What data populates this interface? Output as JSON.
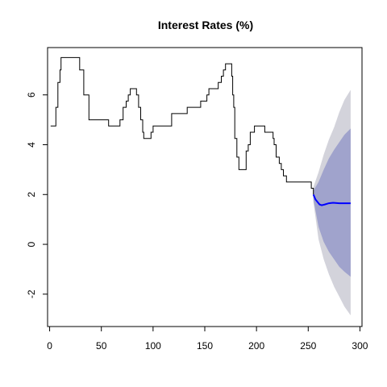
{
  "chart_data": {
    "type": "line",
    "title": "Interest Rates (%)",
    "xlabel": "",
    "ylabel": "",
    "xlim": [
      -2,
      302
    ],
    "ylim": [
      -3.3,
      7.9
    ],
    "x_ticks": [
      0,
      50,
      100,
      150,
      200,
      250,
      300
    ],
    "y_ticks": [
      -2,
      0,
      2,
      4,
      6
    ],
    "grid": false,
    "colors": {
      "history": "#000000",
      "forecast": "#0000ff",
      "band_80": "#a0a3cc",
      "band_95": "#d3d3db"
    },
    "history": {
      "name": "",
      "points": [
        [
          1,
          4.75
        ],
        [
          6,
          4.75
        ],
        [
          6,
          5.5
        ],
        [
          8,
          5.5
        ],
        [
          8,
          6.5
        ],
        [
          10,
          6.5
        ],
        [
          10,
          7.0
        ],
        [
          11,
          7.0
        ],
        [
          11,
          7.5
        ],
        [
          29,
          7.5
        ],
        [
          29,
          7.0
        ],
        [
          33,
          7.0
        ],
        [
          33,
          6.0
        ],
        [
          38,
          6.0
        ],
        [
          38,
          5.0
        ],
        [
          57,
          5.0
        ],
        [
          57,
          4.75
        ],
        [
          68,
          4.75
        ],
        [
          68,
          5.0
        ],
        [
          71,
          5.0
        ],
        [
          71,
          5.5
        ],
        [
          74,
          5.5
        ],
        [
          74,
          5.75
        ],
        [
          76,
          5.75
        ],
        [
          76,
          6.0
        ],
        [
          78,
          6.0
        ],
        [
          78,
          6.25
        ],
        [
          84,
          6.25
        ],
        [
          84,
          6.0
        ],
        [
          86,
          6.0
        ],
        [
          86,
          5.5
        ],
        [
          88,
          5.5
        ],
        [
          88,
          5.0
        ],
        [
          90,
          5.0
        ],
        [
          90,
          4.5
        ],
        [
          91,
          4.5
        ],
        [
          91,
          4.25
        ],
        [
          98,
          4.25
        ],
        [
          98,
          4.5
        ],
        [
          100,
          4.5
        ],
        [
          100,
          4.75
        ],
        [
          118,
          4.75
        ],
        [
          118,
          5.25
        ],
        [
          133,
          5.25
        ],
        [
          133,
          5.5
        ],
        [
          146,
          5.5
        ],
        [
          146,
          5.75
        ],
        [
          152,
          5.75
        ],
        [
          152,
          6.0
        ],
        [
          154,
          6.0
        ],
        [
          154,
          6.25
        ],
        [
          163,
          6.25
        ],
        [
          163,
          6.5
        ],
        [
          166,
          6.5
        ],
        [
          166,
          6.75
        ],
        [
          168,
          6.75
        ],
        [
          168,
          7.0
        ],
        [
          170,
          7.0
        ],
        [
          170,
          7.25
        ],
        [
          176,
          7.25
        ],
        [
          176,
          6.75
        ],
        [
          177,
          6.75
        ],
        [
          177,
          6.0
        ],
        [
          178,
          6.0
        ],
        [
          178,
          5.5
        ],
        [
          179,
          5.5
        ],
        [
          179,
          4.25
        ],
        [
          181,
          4.25
        ],
        [
          181,
          3.5
        ],
        [
          183,
          3.5
        ],
        [
          183,
          3.0
        ],
        [
          190,
          3.0
        ],
        [
          190,
          3.75
        ],
        [
          192,
          3.75
        ],
        [
          192,
          4.0
        ],
        [
          194,
          4.0
        ],
        [
          194,
          4.5
        ],
        [
          196,
          4.5
        ],
        [
          196,
          4.5
        ],
        [
          198,
          4.5
        ],
        [
          198,
          4.75
        ],
        [
          208,
          4.75
        ],
        [
          208,
          4.5
        ],
        [
          216,
          4.5
        ],
        [
          216,
          4.25
        ],
        [
          217,
          4.25
        ],
        [
          217,
          4.0
        ],
        [
          219,
          4.0
        ],
        [
          219,
          3.5
        ],
        [
          222,
          3.5
        ],
        [
          222,
          3.25
        ],
        [
          224,
          3.25
        ],
        [
          224,
          3.0
        ],
        [
          226,
          3.0
        ],
        [
          226,
          2.75
        ],
        [
          229,
          2.75
        ],
        [
          229,
          2.5
        ],
        [
          253,
          2.5
        ],
        [
          253,
          2.25
        ],
        [
          255,
          2.25
        ],
        [
          255,
          2.0
        ]
      ]
    },
    "forecast": {
      "name": "",
      "points": [
        [
          255,
          2.0
        ],
        [
          257,
          1.8
        ],
        [
          259,
          1.7
        ],
        [
          261,
          1.6
        ],
        [
          263,
          1.57
        ],
        [
          266,
          1.6
        ],
        [
          270,
          1.65
        ],
        [
          274,
          1.67
        ],
        [
          280,
          1.65
        ],
        [
          285,
          1.65
        ],
        [
          291,
          1.65
        ]
      ]
    },
    "band_95": {
      "name": "",
      "lower": [
        [
          255,
          1.7
        ],
        [
          260,
          0.2
        ],
        [
          265,
          -0.6
        ],
        [
          270,
          -1.2
        ],
        [
          275,
          -1.7
        ],
        [
          280,
          -2.1
        ],
        [
          285,
          -2.5
        ],
        [
          291,
          -2.85
        ]
      ],
      "upper": [
        [
          255,
          2.3
        ],
        [
          260,
          2.9
        ],
        [
          265,
          3.6
        ],
        [
          270,
          4.2
        ],
        [
          275,
          4.7
        ],
        [
          280,
          5.3
        ],
        [
          285,
          5.8
        ],
        [
          291,
          6.2
        ]
      ]
    },
    "band_80": {
      "name": "",
      "lower": [
        [
          255,
          1.8
        ],
        [
          260,
          0.7
        ],
        [
          265,
          0.1
        ],
        [
          270,
          -0.3
        ],
        [
          275,
          -0.6
        ],
        [
          280,
          -0.9
        ],
        [
          285,
          -1.1
        ],
        [
          291,
          -1.3
        ]
      ],
      "upper": [
        [
          255,
          2.15
        ],
        [
          260,
          2.5
        ],
        [
          265,
          3.0
        ],
        [
          270,
          3.45
        ],
        [
          275,
          3.8
        ],
        [
          280,
          4.1
        ],
        [
          285,
          4.4
        ],
        [
          291,
          4.65
        ]
      ]
    }
  }
}
